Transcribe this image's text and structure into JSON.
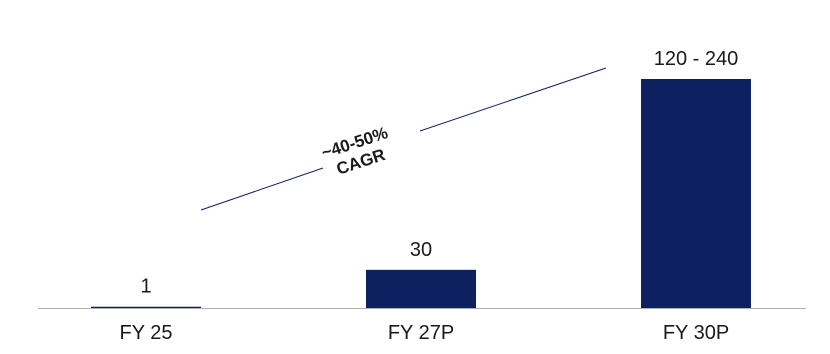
{
  "chart_data": {
    "type": "bar",
    "categories": [
      "FY 25",
      "FY 27P",
      "FY 30P"
    ],
    "values": [
      1,
      30,
      180
    ],
    "data_labels": [
      "1",
      "30",
      "120 - 240"
    ],
    "bar_color": "#0d2160",
    "title": "",
    "xlabel": "",
    "ylabel": "",
    "annotation": {
      "line1": "~40-50%",
      "line2": "CAGR"
    },
    "axis_color": "#b0b0b0",
    "grid": false,
    "legend": "none"
  }
}
